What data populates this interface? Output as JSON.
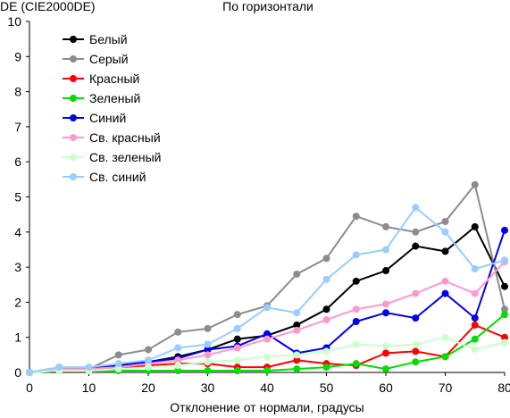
{
  "chart_data": {
    "type": "line",
    "title": "По горизонтали",
    "ylabel": "DE (CIE2000DE)",
    "xlabel": "Отклонение от нормали, градусы",
    "xlim": [
      0,
      80
    ],
    "ylim": [
      0,
      10
    ],
    "xticks": [
      0,
      10,
      20,
      30,
      40,
      50,
      60,
      70,
      80
    ],
    "yticks": [
      0,
      1,
      2,
      3,
      4,
      5,
      6,
      7,
      8,
      9,
      10
    ],
    "grid": false,
    "legend_position": "top-left",
    "x": [
      0,
      5,
      10,
      15,
      20,
      25,
      30,
      35,
      40,
      45,
      50,
      55,
      60,
      65,
      70,
      75,
      80
    ],
    "series": [
      {
        "name": "Белый",
        "color": "#000000",
        "values": [
          0,
          0.1,
          0.1,
          0.2,
          0.3,
          0.45,
          0.65,
          0.95,
          1.05,
          1.35,
          1.8,
          2.6,
          2.9,
          3.6,
          3.45,
          4.15,
          2.45
        ]
      },
      {
        "name": "Серый",
        "color": "#8c8c8c",
        "values": [
          0,
          0.15,
          0.1,
          0.5,
          0.65,
          1.15,
          1.25,
          1.65,
          1.9,
          2.8,
          3.25,
          4.45,
          4.15,
          4.0,
          4.3,
          5.35,
          1.8
        ]
      },
      {
        "name": "Красный",
        "color": "#ff0000",
        "values": [
          0,
          0.1,
          0.1,
          0.1,
          0.2,
          0.25,
          0.25,
          0.15,
          0.15,
          0.35,
          0.25,
          0.2,
          0.55,
          0.6,
          0.45,
          1.35,
          1.0
        ]
      },
      {
        "name": "Зеленый",
        "color": "#00dd00",
        "values": [
          0,
          0.05,
          0.05,
          0.05,
          0.05,
          0.05,
          0.05,
          0.05,
          0.05,
          0.1,
          0.15,
          0.25,
          0.1,
          0.3,
          0.45,
          0.95,
          1.65
        ]
      },
      {
        "name": "Синий",
        "color": "#0000ee",
        "values": [
          0,
          0.1,
          0.1,
          0.2,
          0.3,
          0.4,
          0.65,
          0.75,
          1.1,
          0.55,
          0.7,
          1.45,
          1.7,
          1.55,
          2.25,
          1.55,
          4.05
        ]
      },
      {
        "name": "Св. красный",
        "color": "#ff99cc",
        "values": [
          0,
          0.1,
          0.1,
          0.15,
          0.25,
          0.35,
          0.5,
          0.7,
          0.95,
          1.2,
          1.5,
          1.8,
          1.95,
          2.25,
          2.6,
          2.25,
          3.15
        ]
      },
      {
        "name": "Св. зеленый",
        "color": "#ccffcc",
        "values": [
          0,
          0.05,
          0.05,
          0.1,
          0.15,
          0.2,
          0.3,
          0.35,
          0.45,
          0.5,
          0.6,
          0.8,
          0.75,
          0.8,
          1.0,
          0.65,
          0.85
        ]
      },
      {
        "name": "Св. синий",
        "color": "#99ccff",
        "values": [
          0,
          0.15,
          0.15,
          0.25,
          0.35,
          0.7,
          0.8,
          1.25,
          1.85,
          1.7,
          2.65,
          3.35,
          3.5,
          4.7,
          4.0,
          2.95,
          3.2
        ]
      }
    ]
  }
}
